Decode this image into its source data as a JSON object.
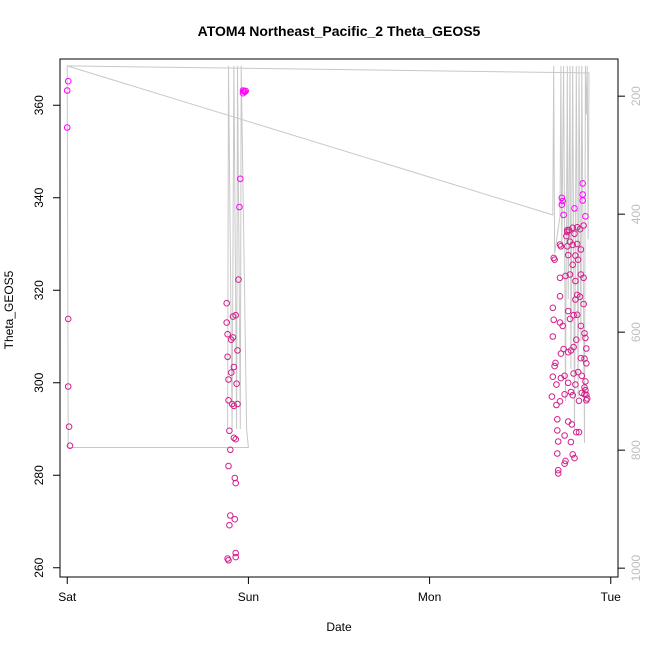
{
  "chart_data": {
    "type": "scatter",
    "title": "ATOM4 Northeast_Pacific_2 Theta_GEOS5",
    "xlabel": "Date",
    "ylabel": "Theta_GEOS5",
    "x_ticks": [
      "Sat",
      "Sun",
      "Mon",
      "Tue"
    ],
    "x_tick_values": [
      0,
      1,
      2,
      3
    ],
    "xlim": [
      -0.04,
      3.04
    ],
    "ylim": [
      258,
      370
    ],
    "y_ticks": [
      260,
      280,
      300,
      320,
      340,
      360
    ],
    "y2_ticks": [
      200,
      400,
      600,
      800,
      1000
    ],
    "y2lim": [
      1015,
      137
    ],
    "grid": false,
    "colors": {
      "points_low": "#d41f8c",
      "points_high": "#ff00ff",
      "line": "#c8c8c8",
      "axis": "#000000",
      "right_axis": "#bfbfbf"
    },
    "points": [
      {
        "x": 0.005,
        "y": 365.2
      },
      {
        "x": 0.0,
        "y": 363.2
      },
      {
        "x": 0.0,
        "y": 355.2
      },
      {
        "x": 0.005,
        "y": 313.8
      },
      {
        "x": 0.005,
        "y": 299.2
      },
      {
        "x": 0.01,
        "y": 290.5
      },
      {
        "x": 0.015,
        "y": 286.4
      },
      {
        "x": 0.88,
        "y": 317.2
      },
      {
        "x": 0.88,
        "y": 313.0
      },
      {
        "x": 0.885,
        "y": 310.5
      },
      {
        "x": 0.885,
        "y": 305.6
      },
      {
        "x": 0.89,
        "y": 300.7
      },
      {
        "x": 0.89,
        "y": 296.2
      },
      {
        "x": 0.895,
        "y": 289.6
      },
      {
        "x": 0.89,
        "y": 282.0
      },
      {
        "x": 0.9,
        "y": 271.3
      },
      {
        "x": 0.895,
        "y": 269.2
      },
      {
        "x": 0.885,
        "y": 262.0
      },
      {
        "x": 0.89,
        "y": 261.6
      },
      {
        "x": 0.905,
        "y": 309.3
      },
      {
        "x": 0.905,
        "y": 302.2
      },
      {
        "x": 0.91,
        "y": 295.4
      },
      {
        "x": 0.9,
        "y": 285.5
      },
      {
        "x": 0.915,
        "y": 314.3
      },
      {
        "x": 0.915,
        "y": 309.8
      },
      {
        "x": 0.92,
        "y": 303.4
      },
      {
        "x": 0.92,
        "y": 295.0
      },
      {
        "x": 0.92,
        "y": 288.1
      },
      {
        "x": 0.925,
        "y": 279.4
      },
      {
        "x": 0.925,
        "y": 270.5
      },
      {
        "x": 0.93,
        "y": 314.6
      },
      {
        "x": 0.935,
        "y": 299.8
      },
      {
        "x": 0.93,
        "y": 287.8
      },
      {
        "x": 0.93,
        "y": 278.3
      },
      {
        "x": 0.93,
        "y": 263.2
      },
      {
        "x": 0.93,
        "y": 262.3
      },
      {
        "x": 0.94,
        "y": 307.0
      },
      {
        "x": 0.94,
        "y": 295.4
      },
      {
        "x": 0.945,
        "y": 322.3
      },
      {
        "x": 0.95,
        "y": 338.0
      },
      {
        "x": 0.955,
        "y": 344.1
      },
      {
        "x": 0.97,
        "y": 363.2
      },
      {
        "x": 0.98,
        "y": 362.9
      },
      {
        "x": 0.975,
        "y": 363.0
      },
      {
        "x": 0.985,
        "y": 363.1
      },
      {
        "x": 0.97,
        "y": 362.6
      },
      {
        "x": 2.68,
        "y": 316.2
      },
      {
        "x": 2.685,
        "y": 313.6
      },
      {
        "x": 2.68,
        "y": 310.0
      },
      {
        "x": 2.69,
        "y": 303.6
      },
      {
        "x": 2.695,
        "y": 304.3
      },
      {
        "x": 2.68,
        "y": 301.3
      },
      {
        "x": 2.7,
        "y": 299.6
      },
      {
        "x": 2.675,
        "y": 297.0
      },
      {
        "x": 2.7,
        "y": 295.2
      },
      {
        "x": 2.685,
        "y": 327.0
      },
      {
        "x": 2.69,
        "y": 326.6
      },
      {
        "x": 2.705,
        "y": 292.1
      },
      {
        "x": 2.705,
        "y": 289.7
      },
      {
        "x": 2.71,
        "y": 287.3
      },
      {
        "x": 2.705,
        "y": 284.7
      },
      {
        "x": 2.71,
        "y": 280.4
      },
      {
        "x": 2.71,
        "y": 281.1
      },
      {
        "x": 2.72,
        "y": 296.0
      },
      {
        "x": 2.725,
        "y": 301.0
      },
      {
        "x": 2.72,
        "y": 313.0
      },
      {
        "x": 2.725,
        "y": 306.3
      },
      {
        "x": 2.72,
        "y": 318.7
      },
      {
        "x": 2.72,
        "y": 322.7
      },
      {
        "x": 2.72,
        "y": 329.9
      },
      {
        "x": 2.725,
        "y": 329.5
      },
      {
        "x": 2.73,
        "y": 340.0
      },
      {
        "x": 2.73,
        "y": 338.5
      },
      {
        "x": 2.735,
        "y": 339.3
      },
      {
        "x": 2.74,
        "y": 336.3
      },
      {
        "x": 2.735,
        "y": 312.3
      },
      {
        "x": 2.74,
        "y": 307.3
      },
      {
        "x": 2.745,
        "y": 301.5
      },
      {
        "x": 2.745,
        "y": 297.5
      },
      {
        "x": 2.745,
        "y": 288.6
      },
      {
        "x": 2.745,
        "y": 282.5
      },
      {
        "x": 2.75,
        "y": 283.1
      },
      {
        "x": 2.75,
        "y": 323.1
      },
      {
        "x": 2.755,
        "y": 331.7
      },
      {
        "x": 2.76,
        "y": 333.0
      },
      {
        "x": 2.76,
        "y": 332.6
      },
      {
        "x": 2.76,
        "y": 329.5
      },
      {
        "x": 2.765,
        "y": 327.6
      },
      {
        "x": 2.765,
        "y": 315.5
      },
      {
        "x": 2.765,
        "y": 306.6
      },
      {
        "x": 2.765,
        "y": 300.0
      },
      {
        "x": 2.765,
        "y": 291.6
      },
      {
        "x": 2.77,
        "y": 333.0
      },
      {
        "x": 2.775,
        "y": 330.5
      },
      {
        "x": 2.775,
        "y": 323.4
      },
      {
        "x": 2.775,
        "y": 313.8
      },
      {
        "x": 2.78,
        "y": 307.0
      },
      {
        "x": 2.78,
        "y": 298.0
      },
      {
        "x": 2.785,
        "y": 291.0
      },
      {
        "x": 2.78,
        "y": 287.2
      },
      {
        "x": 2.79,
        "y": 333.5
      },
      {
        "x": 2.79,
        "y": 329.8
      },
      {
        "x": 2.79,
        "y": 325.5
      },
      {
        "x": 2.795,
        "y": 314.6
      },
      {
        "x": 2.795,
        "y": 307.7
      },
      {
        "x": 2.795,
        "y": 302.0
      },
      {
        "x": 2.79,
        "y": 297.3
      },
      {
        "x": 2.79,
        "y": 284.5
      },
      {
        "x": 2.8,
        "y": 337.7
      },
      {
        "x": 2.8,
        "y": 332.2
      },
      {
        "x": 2.805,
        "y": 327.5
      },
      {
        "x": 2.805,
        "y": 322.0
      },
      {
        "x": 2.805,
        "y": 318.0
      },
      {
        "x": 2.81,
        "y": 309.3
      },
      {
        "x": 2.805,
        "y": 299.6
      },
      {
        "x": 2.8,
        "y": 283.7
      },
      {
        "x": 2.81,
        "y": 289.3
      },
      {
        "x": 2.815,
        "y": 333.6
      },
      {
        "x": 2.815,
        "y": 330.0
      },
      {
        "x": 2.82,
        "y": 326.6
      },
      {
        "x": 2.815,
        "y": 319.0
      },
      {
        "x": 2.815,
        "y": 314.7
      },
      {
        "x": 2.82,
        "y": 302.3
      },
      {
        "x": 2.825,
        "y": 296.1
      },
      {
        "x": 2.825,
        "y": 289.3
      },
      {
        "x": 2.83,
        "y": 333.2
      },
      {
        "x": 2.835,
        "y": 328.8
      },
      {
        "x": 2.835,
        "y": 323.4
      },
      {
        "x": 2.83,
        "y": 318.6
      },
      {
        "x": 2.835,
        "y": 312.3
      },
      {
        "x": 2.835,
        "y": 305.3
      },
      {
        "x": 2.84,
        "y": 301.5
      },
      {
        "x": 2.84,
        "y": 297.8
      },
      {
        "x": 2.845,
        "y": 343.1
      },
      {
        "x": 2.845,
        "y": 340.7
      },
      {
        "x": 2.845,
        "y": 339.4
      },
      {
        "x": 2.85,
        "y": 334.0
      },
      {
        "x": 2.85,
        "y": 322.7
      },
      {
        "x": 2.85,
        "y": 317.0
      },
      {
        "x": 2.855,
        "y": 310.7
      },
      {
        "x": 2.855,
        "y": 305.2
      },
      {
        "x": 2.855,
        "y": 299.0
      },
      {
        "x": 2.855,
        "y": 297.5
      },
      {
        "x": 2.86,
        "y": 336.0
      },
      {
        "x": 2.86,
        "y": 309.7
      },
      {
        "x": 2.865,
        "y": 307.4
      },
      {
        "x": 2.865,
        "y": 304.2
      },
      {
        "x": 2.86,
        "y": 300.3
      },
      {
        "x": 2.86,
        "y": 298.4
      },
      {
        "x": 2.865,
        "y": 297.4
      },
      {
        "x": 2.87,
        "y": 296.6
      },
      {
        "x": 2.865,
        "y": 296.2
      }
    ],
    "line": [
      {
        "x": 0.0,
        "y": 368.5
      },
      {
        "x": 2.68,
        "y": 336.3
      },
      {
        "x": 2.685,
        "y": 368.5
      },
      {
        "x": 2.69,
        "y": 328.0
      },
      {
        "x": 2.72,
        "y": 336.0
      },
      {
        "x": 2.725,
        "y": 368.5
      },
      {
        "x": 2.73,
        "y": 329.0
      },
      {
        "x": 2.74,
        "y": 368.5
      },
      {
        "x": 2.75,
        "y": 296.0
      },
      {
        "x": 2.76,
        "y": 368.5
      },
      {
        "x": 2.765,
        "y": 318.0
      },
      {
        "x": 2.775,
        "y": 368.5
      },
      {
        "x": 2.78,
        "y": 303.0
      },
      {
        "x": 2.79,
        "y": 368.5
      },
      {
        "x": 2.8,
        "y": 290.0
      },
      {
        "x": 2.81,
        "y": 368.5
      },
      {
        "x": 2.82,
        "y": 297.0
      },
      {
        "x": 2.825,
        "y": 368.5
      },
      {
        "x": 2.835,
        "y": 309.0
      },
      {
        "x": 2.84,
        "y": 368.5
      },
      {
        "x": 2.855,
        "y": 287.0
      },
      {
        "x": 2.86,
        "y": 368.5
      },
      {
        "x": 2.865,
        "y": 358.0
      },
      {
        "x": 2.87,
        "y": 368.5
      },
      {
        "x": 2.875,
        "y": 331.0
      },
      {
        "x": 2.88,
        "y": 367.0
      },
      {
        "x": 0.0,
        "y": 368.5
      },
      {
        "x": 0.005,
        "y": 286.0
      },
      {
        "x": 1.0,
        "y": 286.0
      },
      {
        "x": 0.99,
        "y": 290.0
      },
      {
        "x": 0.96,
        "y": 368.5
      },
      {
        "x": 0.955,
        "y": 290.0
      },
      {
        "x": 0.94,
        "y": 368.5
      },
      {
        "x": 0.935,
        "y": 290.0
      },
      {
        "x": 0.92,
        "y": 368.5
      },
      {
        "x": 0.91,
        "y": 290.0
      },
      {
        "x": 0.89,
        "y": 368.5
      },
      {
        "x": 0.885,
        "y": 290.0
      }
    ]
  }
}
